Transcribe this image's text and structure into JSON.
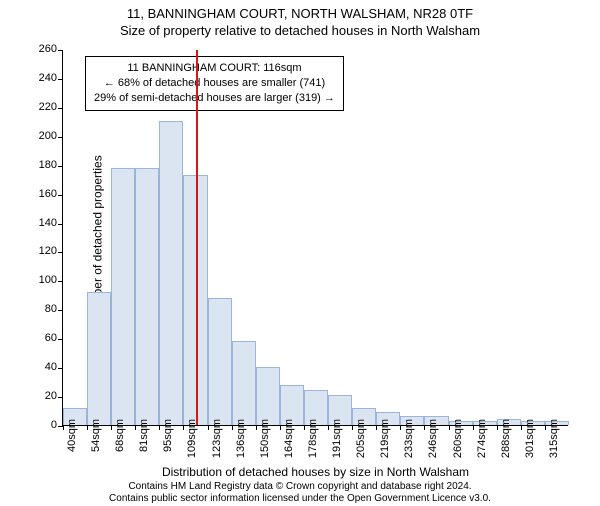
{
  "title_line1": "11, BANNINGHAM COURT, NORTH WALSHAM, NR28 0TF",
  "title_line2": "Size of property relative to detached houses in North Walsham",
  "ylabel": "Number of detached properties",
  "xlabel": "Distribution of detached houses by size in North Walsham",
  "chart": {
    "type": "histogram",
    "background_color": "#ffffff",
    "bar_fill": "#dbe5f2",
    "bar_stroke": "#9ab5d9",
    "refline_color": "#d9141a",
    "refline_x_sqm": 116,
    "ylim": [
      0,
      260
    ],
    "ytick_step": 20,
    "x_start_sqm": 40,
    "x_bin_width_sqm": 13.75,
    "bars_count": 21,
    "bar_values": [
      12,
      92,
      178,
      178,
      210,
      173,
      88,
      58,
      40,
      28,
      24,
      21,
      12,
      9,
      6,
      6,
      3,
      3,
      4,
      3,
      3
    ],
    "xtick_labels": [
      "40sqm",
      "54sqm",
      "68sqm",
      "81sqm",
      "95sqm",
      "109sqm",
      "123sqm",
      "136sqm",
      "150sqm",
      "164sqm",
      "178sqm",
      "191sqm",
      "205sqm",
      "219sqm",
      "233sqm",
      "246sqm",
      "260sqm",
      "274sqm",
      "288sqm",
      "301sqm",
      "315sqm"
    ],
    "title_fontsize": 13,
    "label_fontsize": 12,
    "tick_fontsize": 11
  },
  "annotation": {
    "line1": "11 BANNINGHAM COURT: 116sqm",
    "line2": "← 68% of detached houses are smaller (741)",
    "line3": "29% of semi-detached houses are larger (319) →"
  },
  "footer_line1": "Contains HM Land Registry data © Crown copyright and database right 2024.",
  "footer_line2": "Contains public sector information licensed under the Open Government Licence v3.0."
}
